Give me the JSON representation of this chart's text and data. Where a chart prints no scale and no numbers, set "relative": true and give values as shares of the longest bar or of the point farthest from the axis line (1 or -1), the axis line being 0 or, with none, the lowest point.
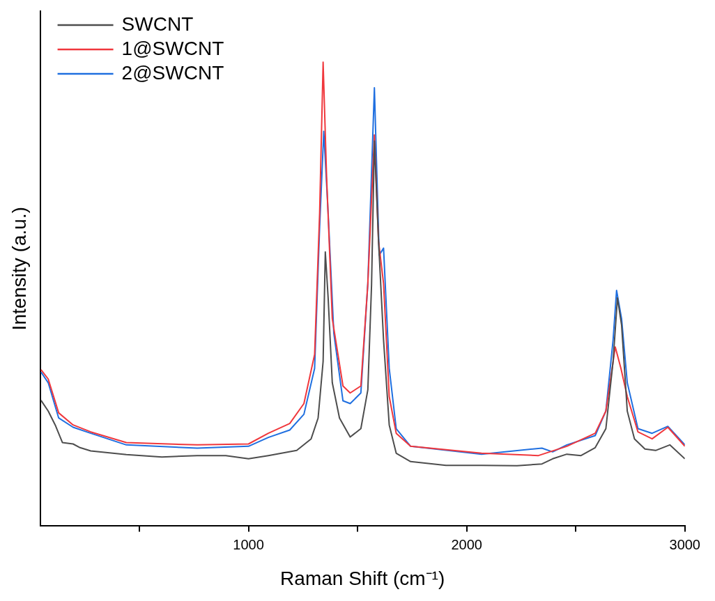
{
  "chart_data": {
    "type": "line",
    "relative": true,
    "xlabel": "Raman Shift (cm⁻¹)",
    "ylabel": "Intensity (a.u.)",
    "xlim": [
      45,
      3000
    ],
    "xticks": [
      {
        "value": 500,
        "label": null
      },
      1000,
      {
        "value": 1500,
        "label": null
      },
      2000,
      {
        "value": 2500,
        "label": null
      },
      3000
    ],
    "legend": "top left",
    "marker": "none",
    "line_style": "solid",
    "series": [
      {
        "name": "SWCNT",
        "color": "#4d4d4d",
        "x": [
          49,
          82,
          114,
          147,
          196,
          228,
          277,
          440,
          603,
          765,
          896,
          1000,
          1091,
          1221,
          1287,
          1319,
          1342,
          1352,
          1365,
          1384,
          1417,
          1466,
          1515,
          1547,
          1564,
          1577,
          1596,
          1619,
          1645,
          1677,
          1743,
          1905,
          2068,
          2231,
          2345,
          2394,
          2459,
          2524,
          2589,
          2638,
          2671,
          2691,
          2710,
          2736,
          2769,
          2817,
          2866,
          2931,
          3000
        ],
        "values": [
          0.271,
          0.248,
          0.218,
          0.18,
          0.177,
          0.169,
          0.162,
          0.154,
          0.149,
          0.152,
          0.152,
          0.145,
          0.152,
          0.163,
          0.188,
          0.233,
          0.355,
          0.591,
          0.492,
          0.309,
          0.233,
          0.192,
          0.21,
          0.294,
          0.52,
          0.83,
          0.614,
          0.401,
          0.218,
          0.157,
          0.139,
          0.131,
          0.131,
          0.13,
          0.134,
          0.145,
          0.155,
          0.152,
          0.169,
          0.21,
          0.355,
          0.492,
          0.433,
          0.248,
          0.188,
          0.166,
          0.163,
          0.175,
          0.145
        ]
      },
      {
        "name": "1@SWCNT",
        "color": "#f0373c",
        "x": [
          49,
          82,
          130,
          196,
          277,
          440,
          765,
          1000,
          1091,
          1189,
          1254,
          1303,
          1326,
          1342,
          1358,
          1384,
          1433,
          1466,
          1515,
          1547,
          1577,
          1596,
          1619,
          1645,
          1677,
          1743,
          2068,
          2329,
          2459,
          2589,
          2638,
          2681,
          2707,
          2736,
          2785,
          2850,
          2922,
          3000
        ],
        "values": [
          0.337,
          0.317,
          0.244,
          0.218,
          0.203,
          0.18,
          0.175,
          0.177,
          0.2,
          0.221,
          0.264,
          0.37,
          0.675,
          1,
          0.752,
          0.447,
          0.302,
          0.287,
          0.302,
          0.523,
          0.843,
          0.614,
          0.523,
          0.279,
          0.2,
          0.172,
          0.157,
          0.152,
          0.172,
          0.2,
          0.248,
          0.386,
          0.34,
          0.279,
          0.203,
          0.188,
          0.213,
          0.172
        ]
      },
      {
        "name": "2@SWCNT",
        "color": "#1f6fe0",
        "x": [
          49,
          82,
          130,
          196,
          277,
          440,
          765,
          1000,
          1091,
          1189,
          1254,
          1303,
          1326,
          1345,
          1365,
          1391,
          1433,
          1466,
          1515,
          1547,
          1577,
          1599,
          1619,
          1645,
          1677,
          1743,
          2068,
          2345,
          2394,
          2459,
          2589,
          2638,
          2671,
          2687,
          2710,
          2736,
          2785,
          2850,
          2922,
          3000
        ],
        "values": [
          0.332,
          0.309,
          0.233,
          0.213,
          0.2,
          0.175,
          0.168,
          0.172,
          0.191,
          0.207,
          0.241,
          0.34,
          0.645,
          0.851,
          0.675,
          0.416,
          0.27,
          0.264,
          0.287,
          0.523,
          0.945,
          0.584,
          0.599,
          0.34,
          0.21,
          0.172,
          0.155,
          0.168,
          0.16,
          0.175,
          0.195,
          0.248,
          0.401,
          0.508,
          0.447,
          0.309,
          0.21,
          0.2,
          0.215,
          0.175
        ]
      }
    ]
  }
}
